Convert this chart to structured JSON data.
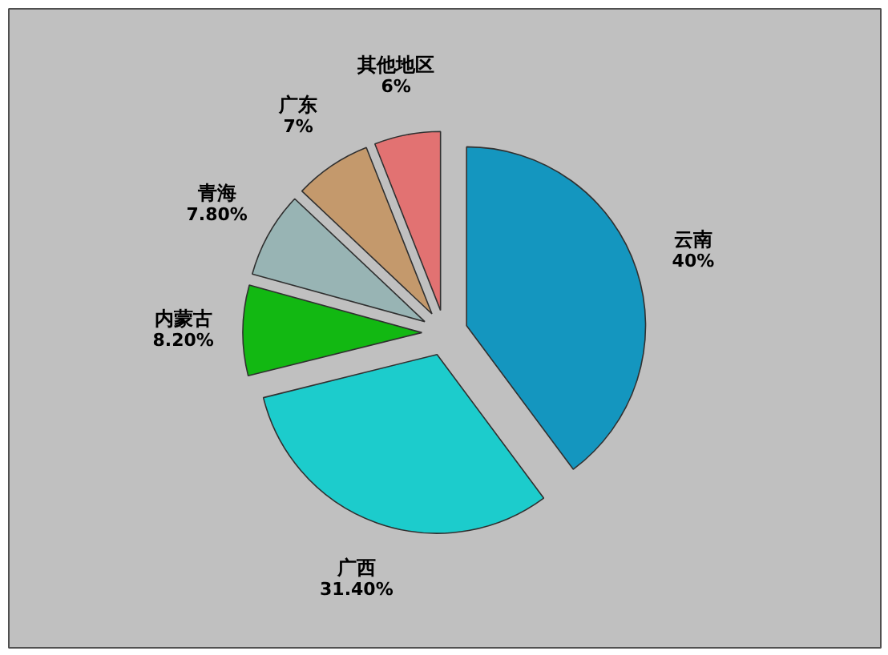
{
  "chart_data": {
    "type": "pie",
    "categories": [
      "云南",
      "广西",
      "内蒙古",
      "青海",
      "广东",
      "其他地区"
    ],
    "values": [
      40,
      31.4,
      8.2,
      7.8,
      7,
      6
    ],
    "value_labels": [
      "40%",
      "31.40%",
      "8.20%",
      "7.80%",
      "7%",
      "6%"
    ],
    "colors": [
      "#1496bf",
      "#1ccccc",
      "#12b812",
      "#98b4b4",
      "#c4996c",
      "#e27272"
    ]
  }
}
